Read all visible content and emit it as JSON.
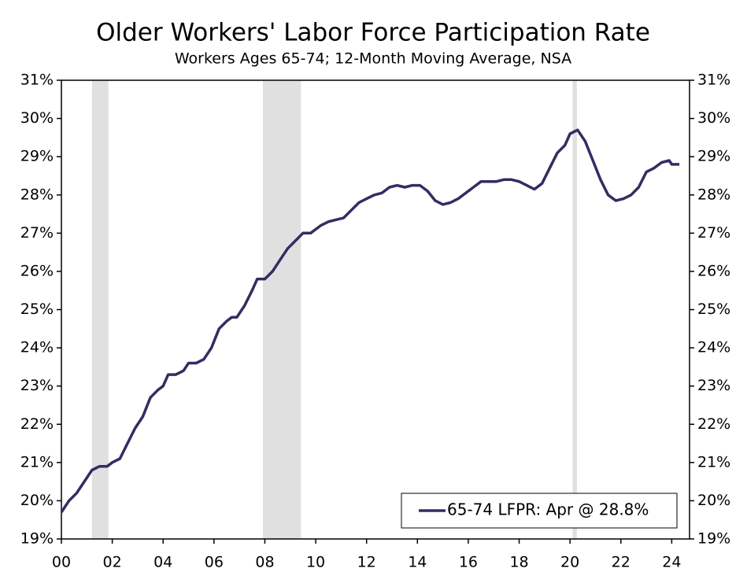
{
  "chart_data": {
    "type": "line",
    "title": "Older Workers' Labor Force Participation Rate",
    "subtitle": "Workers Ages 65-74; 12-Month Moving Average, NSA",
    "x": [
      2000.0,
      2000.3,
      2000.6,
      2000.9,
      2001.2,
      2001.5,
      2001.8,
      2002.0,
      2002.3,
      2002.6,
      2002.9,
      2003.2,
      2003.5,
      2003.8,
      2004.0,
      2004.2,
      2004.5,
      2004.8,
      2005.0,
      2005.3,
      2005.6,
      2005.9,
      2006.2,
      2006.5,
      2006.7,
      2006.9,
      2007.2,
      2007.5,
      2007.7,
      2008.0,
      2008.3,
      2008.6,
      2008.9,
      2009.2,
      2009.5,
      2009.8,
      2010.2,
      2010.5,
      2010.8,
      2011.1,
      2011.4,
      2011.7,
      2012.0,
      2012.3,
      2012.6,
      2012.9,
      2013.2,
      2013.5,
      2013.8,
      2014.1,
      2014.4,
      2014.7,
      2015.0,
      2015.3,
      2015.6,
      2015.9,
      2016.2,
      2016.5,
      2016.8,
      2017.1,
      2017.4,
      2017.7,
      2018.0,
      2018.3,
      2018.6,
      2018.9,
      2019.2,
      2019.5,
      2019.8,
      2020.0,
      2020.3,
      2020.6,
      2020.9,
      2021.2,
      2021.5,
      2021.8,
      2022.1,
      2022.4,
      2022.7,
      2023.0,
      2023.3,
      2023.6,
      2023.9,
      2024.0,
      2024.3
    ],
    "series": [
      {
        "name": "65-74 LFPR: Apr @ 28.8%",
        "color": "#352c63",
        "values": [
          19.7,
          20.0,
          20.2,
          20.5,
          20.8,
          20.9,
          20.9,
          21.0,
          21.1,
          21.5,
          21.9,
          22.2,
          22.7,
          22.9,
          23.0,
          23.3,
          23.3,
          23.4,
          23.6,
          23.6,
          23.7,
          24.0,
          24.5,
          24.7,
          24.8,
          24.8,
          25.1,
          25.5,
          25.8,
          25.8,
          26.0,
          26.3,
          26.6,
          26.8,
          27.0,
          27.0,
          27.2,
          27.3,
          27.35,
          27.4,
          27.6,
          27.8,
          27.9,
          28.0,
          28.05,
          28.2,
          28.25,
          28.2,
          28.25,
          28.25,
          28.1,
          27.85,
          27.75,
          27.8,
          27.9,
          28.05,
          28.2,
          28.35,
          28.35,
          28.35,
          28.4,
          28.4,
          28.35,
          28.25,
          28.15,
          28.3,
          28.7,
          29.1,
          29.3,
          29.6,
          29.7,
          29.4,
          28.9,
          28.4,
          28.0,
          27.85,
          27.9,
          28.0,
          28.2,
          28.6,
          28.7,
          28.85,
          28.9,
          28.8,
          28.8
        ]
      }
    ],
    "shaded_regions": [
      [
        2001.2,
        2001.85
      ],
      [
        2007.92,
        2009.42
      ],
      [
        2020.1,
        2020.27
      ]
    ],
    "shade_color": "#e0e0e0",
    "xlim": [
      2000,
      2024.7
    ],
    "xticks": [
      {
        "value": 2000,
        "label": "00"
      },
      {
        "value": 2002,
        "label": "02"
      },
      {
        "value": 2004,
        "label": "04"
      },
      {
        "value": 2006,
        "label": "06"
      },
      {
        "value": 2008,
        "label": "08"
      },
      {
        "value": 2010,
        "label": "10"
      },
      {
        "value": 2012,
        "label": "12"
      },
      {
        "value": 2014,
        "label": "14"
      },
      {
        "value": 2016,
        "label": "16"
      },
      {
        "value": 2018,
        "label": "18"
      },
      {
        "value": 2020,
        "label": "20"
      },
      {
        "value": 2022,
        "label": "22"
      },
      {
        "value": 2024,
        "label": "24"
      }
    ],
    "ylim": [
      19,
      31
    ],
    "yticks": [
      {
        "value": 19,
        "label": "19%"
      },
      {
        "value": 20,
        "label": "20%"
      },
      {
        "value": 21,
        "label": "21%"
      },
      {
        "value": 22,
        "label": "22%"
      },
      {
        "value": 23,
        "label": "23%"
      },
      {
        "value": 24,
        "label": "24%"
      },
      {
        "value": 25,
        "label": "25%"
      },
      {
        "value": 26,
        "label": "26%"
      },
      {
        "value": 27,
        "label": "27%"
      },
      {
        "value": 28,
        "label": "28%"
      },
      {
        "value": 29,
        "label": "29%"
      },
      {
        "value": 30,
        "label": "30%"
      },
      {
        "value": 31,
        "label": "31%"
      }
    ],
    "legend": "lower right"
  }
}
